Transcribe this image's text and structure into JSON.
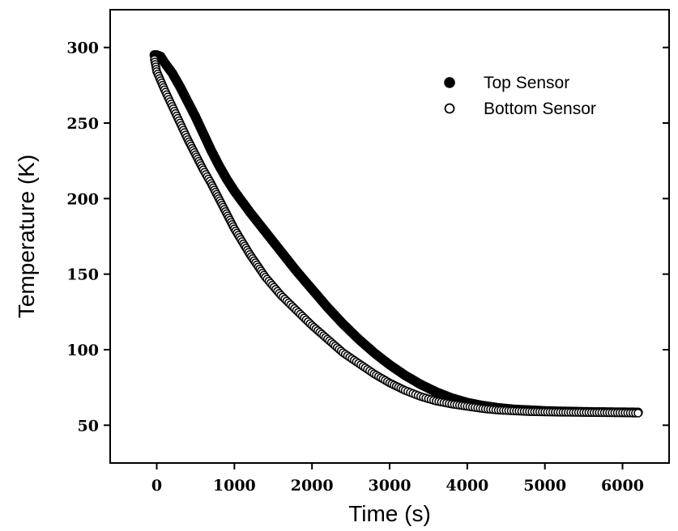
{
  "chart_data": {
    "type": "scatter",
    "xlabel": "Time (s)",
    "ylabel": "Temperature (K)",
    "xlim": [
      -600,
      6600
    ],
    "ylim": [
      25,
      325
    ],
    "xticks": [
      0,
      1000,
      2000,
      3000,
      4000,
      5000,
      6000
    ],
    "xtick_labels": [
      "0",
      "1000",
      "2000",
      "3000",
      "4000",
      "5000",
      "6000"
    ],
    "yticks": [
      50,
      100,
      150,
      200,
      250,
      300
    ],
    "ytick_labels": [
      "50",
      "100",
      "150",
      "200",
      "250",
      "300"
    ],
    "grid": false,
    "legend_position": "top-right",
    "series": [
      {
        "name": "Top Sensor",
        "marker": "filled-circle",
        "color": "#000000",
        "points": [
          [
            -30,
            295
          ],
          [
            0,
            295
          ],
          [
            50,
            294
          ],
          [
            100,
            290
          ],
          [
            200,
            283
          ],
          [
            300,
            274
          ],
          [
            400,
            264
          ],
          [
            500,
            254
          ],
          [
            600,
            243
          ],
          [
            700,
            232
          ],
          [
            800,
            222
          ],
          [
            900,
            213
          ],
          [
            1000,
            205
          ],
          [
            1200,
            191
          ],
          [
            1400,
            178
          ],
          [
            1600,
            165
          ],
          [
            1800,
            152
          ],
          [
            2000,
            140
          ],
          [
            2200,
            128
          ],
          [
            2400,
            117
          ],
          [
            2600,
            107
          ],
          [
            2800,
            98
          ],
          [
            3000,
            90
          ],
          [
            3200,
            83
          ],
          [
            3400,
            77
          ],
          [
            3600,
            72
          ],
          [
            3800,
            68
          ],
          [
            4000,
            65
          ],
          [
            4200,
            63
          ],
          [
            4400,
            61.5
          ],
          [
            4600,
            60.5
          ],
          [
            4800,
            60
          ],
          [
            5000,
            59.5
          ],
          [
            5200,
            59.2
          ],
          [
            5400,
            59
          ],
          [
            5600,
            58.8
          ],
          [
            5800,
            58.7
          ],
          [
            6000,
            58.6
          ],
          [
            6200,
            58.5
          ]
        ]
      },
      {
        "name": "Bottom Sensor",
        "marker": "open-circle",
        "color": "#000000",
        "points": [
          [
            -30,
            292
          ],
          [
            0,
            284
          ],
          [
            50,
            278
          ],
          [
            100,
            272
          ],
          [
            200,
            261
          ],
          [
            300,
            250
          ],
          [
            400,
            239
          ],
          [
            500,
            229
          ],
          [
            600,
            219
          ],
          [
            700,
            210
          ],
          [
            800,
            200
          ],
          [
            900,
            190
          ],
          [
            1000,
            180
          ],
          [
            1200,
            163
          ],
          [
            1400,
            148
          ],
          [
            1600,
            136
          ],
          [
            1800,
            126
          ],
          [
            2000,
            116
          ],
          [
            2200,
            107
          ],
          [
            2400,
            98
          ],
          [
            2600,
            91
          ],
          [
            2800,
            84
          ],
          [
            3000,
            78
          ],
          [
            3200,
            73
          ],
          [
            3400,
            69
          ],
          [
            3600,
            66
          ],
          [
            3800,
            64
          ],
          [
            4000,
            62.5
          ],
          [
            4200,
            61
          ],
          [
            4400,
            60
          ],
          [
            4600,
            59.5
          ],
          [
            4800,
            59
          ],
          [
            5000,
            58.8
          ],
          [
            5200,
            58.6
          ],
          [
            5400,
            58.5
          ],
          [
            5600,
            58.4
          ],
          [
            5800,
            58.3
          ],
          [
            6000,
            58.2
          ],
          [
            6200,
            58
          ]
        ]
      }
    ]
  }
}
